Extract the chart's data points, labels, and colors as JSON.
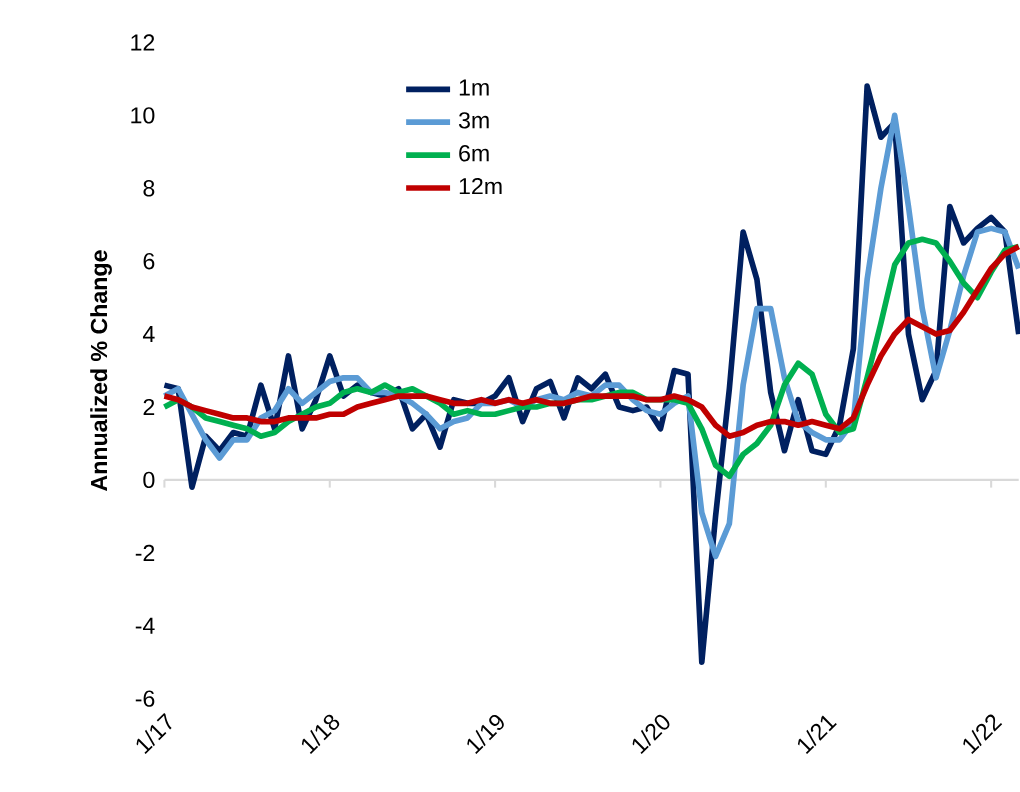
{
  "chart_data": {
    "type": "line",
    "ylabel": "Annualized % Change",
    "x": [
      "2017-01",
      "2017-02",
      "2017-03",
      "2017-04",
      "2017-05",
      "2017-06",
      "2017-07",
      "2017-08",
      "2017-09",
      "2017-10",
      "2017-11",
      "2017-12",
      "2018-01",
      "2018-02",
      "2018-03",
      "2018-04",
      "2018-05",
      "2018-06",
      "2018-07",
      "2018-08",
      "2018-09",
      "2018-10",
      "2018-11",
      "2018-12",
      "2019-01",
      "2019-02",
      "2019-03",
      "2019-04",
      "2019-05",
      "2019-06",
      "2019-07",
      "2019-08",
      "2019-09",
      "2019-10",
      "2019-11",
      "2019-12",
      "2020-01",
      "2020-02",
      "2020-03",
      "2020-04",
      "2020-05",
      "2020-06",
      "2020-07",
      "2020-08",
      "2020-09",
      "2020-10",
      "2020-11",
      "2020-12",
      "2021-01",
      "2021-02",
      "2021-03",
      "2021-04",
      "2021-05",
      "2021-06",
      "2021-07",
      "2021-08",
      "2021-09",
      "2021-10",
      "2021-11",
      "2021-12",
      "2022-01",
      "2022-02",
      "2022-03"
    ],
    "series": [
      {
        "name": "1m",
        "color": "#002060",
        "values": [
          2.6,
          2.5,
          -0.2,
          1.2,
          0.8,
          1.3,
          1.2,
          2.6,
          1.4,
          3.4,
          1.4,
          2.2,
          3.4,
          2.3,
          2.6,
          2.4,
          2.3,
          2.5,
          1.4,
          1.8,
          0.9,
          2.2,
          2.1,
          2.1,
          2.3,
          2.8,
          1.6,
          2.5,
          2.7,
          1.7,
          2.8,
          2.5,
          2.9,
          2.0,
          1.9,
          2.0,
          1.4,
          3.0,
          2.9,
          -5.0,
          -1.0,
          2.5,
          6.8,
          5.5,
          2.4,
          0.8,
          2.2,
          0.8,
          0.7,
          1.5,
          3.6,
          10.8,
          9.4,
          9.8,
          4.0,
          2.2,
          3.0,
          7.5,
          6.5,
          6.9,
          7.2,
          6.8,
          4.0
        ]
      },
      {
        "name": "3m",
        "color": "#5b9bd5",
        "values": [
          2.3,
          2.5,
          1.8,
          1.1,
          0.6,
          1.1,
          1.1,
          1.7,
          1.9,
          2.5,
          2.1,
          2.4,
          2.7,
          2.8,
          2.8,
          2.4,
          2.4,
          2.3,
          2.1,
          1.8,
          1.4,
          1.6,
          1.7,
          2.1,
          2.1,
          2.2,
          2.0,
          2.2,
          2.3,
          2.2,
          2.4,
          2.3,
          2.6,
          2.6,
          2.2,
          1.9,
          1.8,
          2.1,
          2.3,
          -0.9,
          -2.1,
          -1.2,
          2.6,
          4.7,
          4.7,
          2.8,
          1.6,
          1.3,
          1.1,
          1.1,
          1.6,
          5.5,
          8.0,
          10.0,
          7.5,
          4.7,
          2.8,
          4.1,
          5.6,
          6.8,
          6.9,
          6.8,
          5.8
        ]
      },
      {
        "name": "6m",
        "color": "#00b050",
        "values": [
          2.0,
          2.2,
          2.0,
          1.7,
          1.6,
          1.5,
          1.4,
          1.2,
          1.3,
          1.6,
          1.8,
          2.0,
          2.1,
          2.4,
          2.5,
          2.4,
          2.6,
          2.4,
          2.5,
          2.3,
          2.1,
          1.8,
          1.9,
          1.8,
          1.8,
          1.9,
          2.0,
          2.0,
          2.1,
          2.1,
          2.2,
          2.2,
          2.3,
          2.4,
          2.4,
          2.2,
          2.2,
          2.2,
          2.1,
          1.4,
          0.4,
          0.1,
          0.7,
          1.0,
          1.5,
          2.6,
          3.2,
          2.9,
          1.8,
          1.3,
          1.4,
          2.8,
          4.3,
          5.9,
          6.5,
          6.6,
          6.5,
          6.0,
          5.4,
          5.0,
          5.7,
          6.3,
          6.4
        ]
      },
      {
        "name": "12m",
        "color": "#c00000",
        "values": [
          2.3,
          2.2,
          2.0,
          1.9,
          1.8,
          1.7,
          1.7,
          1.6,
          1.6,
          1.7,
          1.7,
          1.7,
          1.8,
          1.8,
          2.0,
          2.1,
          2.2,
          2.3,
          2.3,
          2.3,
          2.2,
          2.1,
          2.1,
          2.2,
          2.1,
          2.2,
          2.1,
          2.2,
          2.1,
          2.1,
          2.2,
          2.3,
          2.3,
          2.3,
          2.3,
          2.2,
          2.2,
          2.3,
          2.2,
          2.0,
          1.5,
          1.2,
          1.3,
          1.5,
          1.6,
          1.6,
          1.5,
          1.6,
          1.5,
          1.4,
          1.7,
          2.6,
          3.4,
          4.0,
          4.4,
          4.2,
          4.0,
          4.1,
          4.6,
          5.2,
          5.8,
          6.2,
          6.4
        ]
      }
    ],
    "xlim": [
      "2017-01",
      "2022-03"
    ],
    "xticks": [
      {
        "value": "2017-01",
        "label": "1/17"
      },
      {
        "value": "2018-01",
        "label": "1/18"
      },
      {
        "value": "2019-01",
        "label": "1/19"
      },
      {
        "value": "2020-01",
        "label": "1/20"
      },
      {
        "value": "2021-01",
        "label": "1/21"
      },
      {
        "value": "2022-01",
        "label": "1/22"
      }
    ],
    "ylim": [
      -6,
      12
    ],
    "yticks": [
      -6,
      -4,
      -2,
      0,
      2,
      4,
      6,
      8,
      10,
      12
    ],
    "ref_lines": [
      {
        "axis": "y",
        "value": 0,
        "color": "#d9d9d9"
      }
    ],
    "grid": false,
    "legend": "top left",
    "marker": "none",
    "line_style": "solid"
  }
}
